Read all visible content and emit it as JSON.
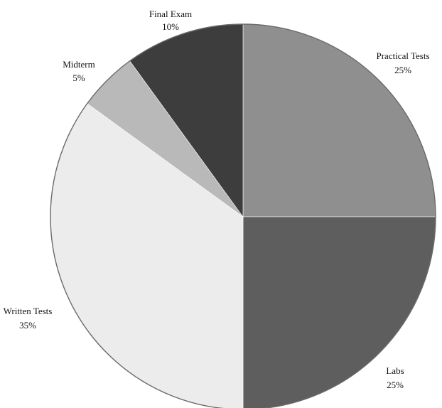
{
  "chart_data": {
    "type": "pie",
    "title": "",
    "start": "12 o'clock",
    "direction": "clockwise",
    "slices": [
      {
        "label": "Practical Tests",
        "value": 25,
        "value_label": "25%",
        "color": "#8f8f8f"
      },
      {
        "label": "Labs",
        "value": 25,
        "value_label": "25%",
        "color": "#5e5e5e"
      },
      {
        "label": "Written Tests",
        "value": 35,
        "value_label": "35%",
        "color": "#ececec"
      },
      {
        "label": "Midterm",
        "value": 5,
        "value_label": "5%",
        "color": "#b9b9b9"
      },
      {
        "label": "Final Exam",
        "value": 10,
        "value_label": "10%",
        "color": "#3d3d3d"
      }
    ]
  }
}
